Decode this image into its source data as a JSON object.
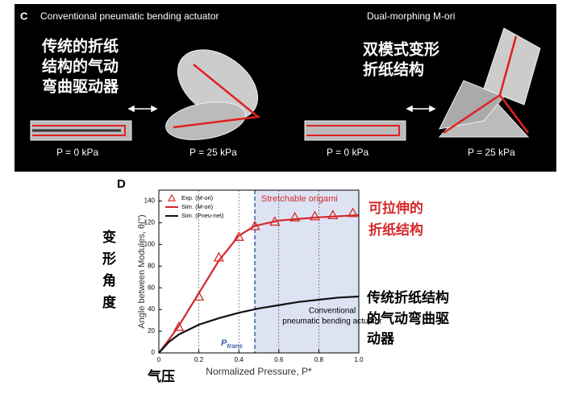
{
  "panel_c": {
    "label": "C",
    "left_title": "Conventional pneumatic bending actuator",
    "right_title": "Dual-morphing M-ori",
    "left_caption_lines": [
      "传统的折纸",
      "结构的气动",
      "弯曲驱动器"
    ],
    "right_caption_lines": [
      "双模式变形",
      "折纸结构"
    ],
    "pressure_labels": [
      "P = 0 kPa",
      "P = 25 kPa",
      "P = 0 kPa",
      "P = 25 kPa"
    ]
  },
  "chart_data": {
    "type": "line",
    "panel_label": "D",
    "xlabel": "Normalized Pressure, P*",
    "ylabel": "Angle between Modules, θ(°)",
    "xlim": [
      0,
      1
    ],
    "ylim": [
      0,
      150
    ],
    "xticks": [
      0,
      0.2,
      0.4,
      0.6,
      0.8,
      {
        "value": 1,
        "label": "1.0"
      }
    ],
    "yticks": [
      0,
      20,
      40,
      60,
      80,
      100,
      120,
      140
    ],
    "grid": true,
    "legend": "upper left",
    "shaded_region": {
      "x": [
        0.48,
        1
      ],
      "label": "Stretchable origami",
      "color": "#dde3f3"
    },
    "threshold": {
      "x": 0.48,
      "symbol": "P",
      "subscript": "trans",
      "color": "#3a5ea8"
    },
    "annotation_lines": [
      "Conventional",
      "pneumatic bending actuator"
    ],
    "series": [
      {
        "name": "Exp. (M-ori)",
        "color": "#d42a2a",
        "style": "marker",
        "x": [
          0.1,
          0.2,
          0.3,
          0.4,
          0.48,
          0.58,
          0.68,
          0.78,
          0.87,
          0.97
        ],
        "values": [
          24,
          52,
          88,
          107,
          117,
          121,
          125,
          126,
          127,
          129
        ]
      },
      {
        "name": "Sim. (M-ori)",
        "color": "#d42a2a",
        "style": "line",
        "x": [
          0,
          0.05,
          0.1,
          0.2,
          0.3,
          0.4,
          0.48,
          0.6,
          0.8,
          1
        ],
        "values": [
          0,
          12,
          25,
          55,
          85,
          108,
          117,
          122,
          125,
          127
        ]
      },
      {
        "name": "Sim. (Pneu-net)",
        "color": "#111111",
        "style": "line",
        "x": [
          0,
          0.05,
          0.1,
          0.2,
          0.3,
          0.4,
          0.5,
          0.6,
          0.7,
          0.8,
          0.9,
          1
        ],
        "values": [
          0,
          10,
          17,
          26,
          32,
          37,
          41,
          44,
          47,
          49,
          51,
          52
        ]
      }
    ]
  },
  "side_notes": {
    "red_lines": [
      "可拉伸的",
      "折纸结构"
    ],
    "black_lines": [
      "传统折纸结构",
      "的气动弯曲驱",
      "动器"
    ],
    "vertical_label": "变形角度",
    "pressure_label": "气压"
  }
}
